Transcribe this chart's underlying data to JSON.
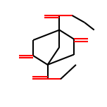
{
  "bg_color": "#ffffff",
  "bond_color": "#000000",
  "oxygen_color": "#ff0000",
  "line_width": 1.5,
  "dbo": 0.022,
  "fig_width": 1.52,
  "fig_height": 1.52,
  "dpi": 100
}
